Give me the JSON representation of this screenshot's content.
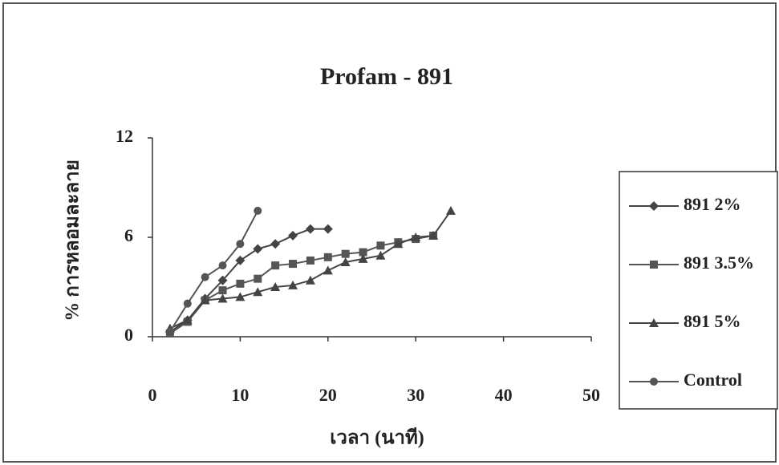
{
  "chart_data": {
    "type": "line",
    "title": "Profam - 891",
    "x_label": "เวลา (นาที)",
    "y_label": "% การหลอมละลาย",
    "xlim": [
      0,
      50
    ],
    "xticks": [
      0,
      10,
      20,
      30,
      40,
      50
    ],
    "ylim": [
      0,
      12
    ],
    "yticks": [
      0,
      6,
      12
    ],
    "legend": "right",
    "series": [
      {
        "name": "891 2%",
        "color": "#444444",
        "marker": "diamond",
        "x": [
          2,
          4,
          6,
          8,
          10,
          12,
          14,
          16,
          18,
          20
        ],
        "values": [
          0.3,
          1,
          2.3,
          3.4,
          4.6,
          5.3,
          5.6,
          6.1,
          6.5,
          6.5
        ]
      },
      {
        "name": "891 3.5%",
        "color": "#555555",
        "marker": "square",
        "x": [
          2,
          4,
          6,
          8,
          10,
          12,
          14,
          16,
          18,
          20,
          22,
          24,
          26,
          28,
          30,
          32
        ],
        "values": [
          0.2,
          0.9,
          2.2,
          2.8,
          3.2,
          3.5,
          4.3,
          4.4,
          4.6,
          4.8,
          5.0,
          5.1,
          5.5,
          5.7,
          5.9,
          6.1
        ]
      },
      {
        "name": "891 5%",
        "color": "#444444",
        "marker": "triangle",
        "x": [
          2,
          4,
          6,
          8,
          10,
          12,
          14,
          16,
          18,
          20,
          22,
          24,
          26,
          28,
          30,
          32,
          34
        ],
        "values": [
          0.5,
          1,
          2.2,
          2.3,
          2.4,
          2.7,
          3.0,
          3.1,
          3.4,
          4.0,
          4.5,
          4.7,
          4.9,
          5.6,
          6.0,
          6.1,
          7.6
        ]
      },
      {
        "name": "Control",
        "color": "#555555",
        "marker": "circle",
        "x": [
          2,
          4,
          6,
          8,
          10,
          12
        ],
        "values": [
          0.3,
          2,
          3.6,
          4.3,
          5.6,
          7.6
        ]
      }
    ]
  }
}
